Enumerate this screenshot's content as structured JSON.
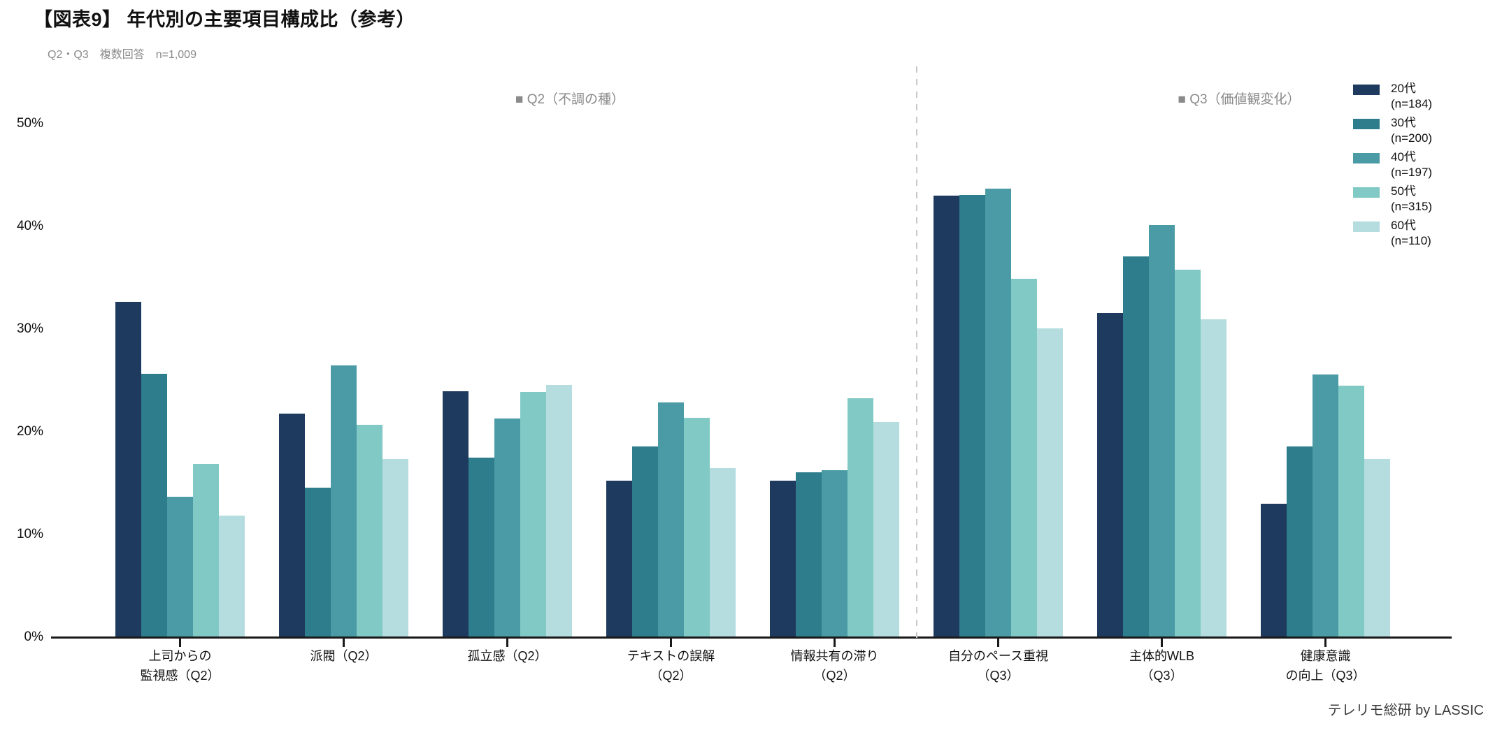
{
  "footer": {
    "credit": "テレリモ総研 by LASSIC"
  },
  "chart_data": {
    "type": "bar",
    "title": "【図表9】 年代別の主要項目構成比（参考）",
    "subtitle": "Q2・Q3　複数回答　n=1,009",
    "ylim": [
      0,
      50
    ],
    "ytick_labels": [
      "0%",
      "10%",
      "20%",
      "30%",
      "40%",
      "50%"
    ],
    "grid": false,
    "legend_position": "top-right",
    "annotations": [
      {
        "text": "■ Q2（不調の種）"
      },
      {
        "text": "■ Q3（価値観変化）"
      }
    ],
    "categories": [
      [
        "上司からの",
        "監視感（Q2）"
      ],
      [
        "派閥（Q2）"
      ],
      [
        "孤立感（Q2）"
      ],
      [
        "テキストの誤解",
        "（Q2）"
      ],
      [
        "情報共有の滞り",
        "（Q2）"
      ],
      [
        "自分のペース重視",
        "（Q3）"
      ],
      [
        "主体的WLB",
        "（Q3）"
      ],
      [
        "健康意識",
        "の向上（Q3）"
      ]
    ],
    "series": [
      {
        "name": "20代",
        "n_label": "(n=184)",
        "color": "#1E3A5E",
        "values": [
          32.6,
          21.7,
          23.9,
          15.2,
          15.2,
          42.9,
          31.5,
          12.9
        ]
      },
      {
        "name": "30代",
        "n_label": "(n=200)",
        "color": "#2E7D8C",
        "values": [
          25.6,
          14.5,
          17.4,
          18.5,
          16.0,
          43.0,
          37.0,
          18.5
        ]
      },
      {
        "name": "40代",
        "n_label": "(n=197)",
        "color": "#4B9BA6",
        "values": [
          13.6,
          26.4,
          21.2,
          22.8,
          16.2,
          43.6,
          40.1,
          25.5
        ]
      },
      {
        "name": "50代",
        "n_label": "(n=315)",
        "color": "#80C9C4",
        "values": [
          16.8,
          20.6,
          23.8,
          21.3,
          23.2,
          34.8,
          35.7,
          24.4
        ]
      },
      {
        "name": "60代",
        "n_label": "(n=110)",
        "color": "#B5DDDF",
        "values": [
          11.8,
          17.3,
          24.5,
          16.4,
          20.9,
          30.0,
          30.9,
          17.3
        ]
      }
    ],
    "divider_between_categories": [
      4,
      5
    ],
    "colors": {
      "axis": "#1a1a1a",
      "divider": "#c9c9c9",
      "section_label": "#8a8a8a"
    }
  }
}
